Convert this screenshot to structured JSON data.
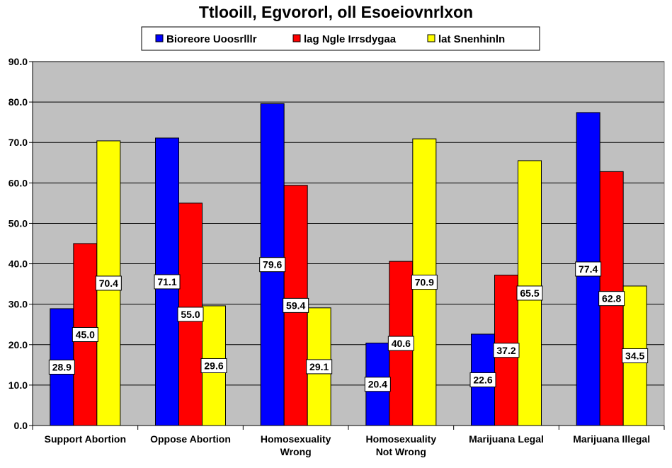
{
  "chart_data": {
    "type": "bar",
    "title": "Ttlooill, Egvororl, oll Esoeiovnrlxon",
    "xlabel": "",
    "ylabel": "",
    "ylim": [
      0,
      90
    ],
    "ytick_step": 10,
    "y_tick_labels": [
      "0.0",
      "10.0",
      "20.0",
      "30.0",
      "40.0",
      "50.0",
      "60.0",
      "70.0",
      "80.0",
      "90.0"
    ],
    "grid": true,
    "legend_position": "top-center",
    "categories": [
      [
        "Support Abortion"
      ],
      [
        "Oppose Abortion"
      ],
      [
        "Homosexuality",
        "Wrong"
      ],
      [
        "Homosexuality",
        "Not Wrong"
      ],
      [
        "Marijuana Legal"
      ],
      [
        "Marijuana Illegal"
      ]
    ],
    "series": [
      {
        "name": "Bioreore Uoosrlllr",
        "color": "#0000ff",
        "values": [
          28.9,
          71.1,
          79.6,
          20.4,
          22.6,
          77.4
        ],
        "labels": [
          "28.9",
          "71.1",
          "79.6",
          "20.4",
          "22.6",
          "77.4"
        ]
      },
      {
        "name": "lag Ngle Irrsdygaa",
        "color": "#ff0000",
        "values": [
          45.0,
          55.0,
          59.4,
          40.6,
          37.2,
          62.8
        ],
        "labels": [
          "45.0",
          "55.0",
          "59.4",
          "40.6",
          "37.2",
          "62.8"
        ]
      },
      {
        "name": "lat Snenhinln",
        "color": "#ffff00",
        "values": [
          70.4,
          29.6,
          29.1,
          70.9,
          65.5,
          34.5
        ],
        "labels": [
          "70.4",
          "29.6",
          "29.1",
          "70.9",
          "65.5",
          "34.5"
        ]
      }
    ],
    "plot_background": "#c0c0c0"
  }
}
